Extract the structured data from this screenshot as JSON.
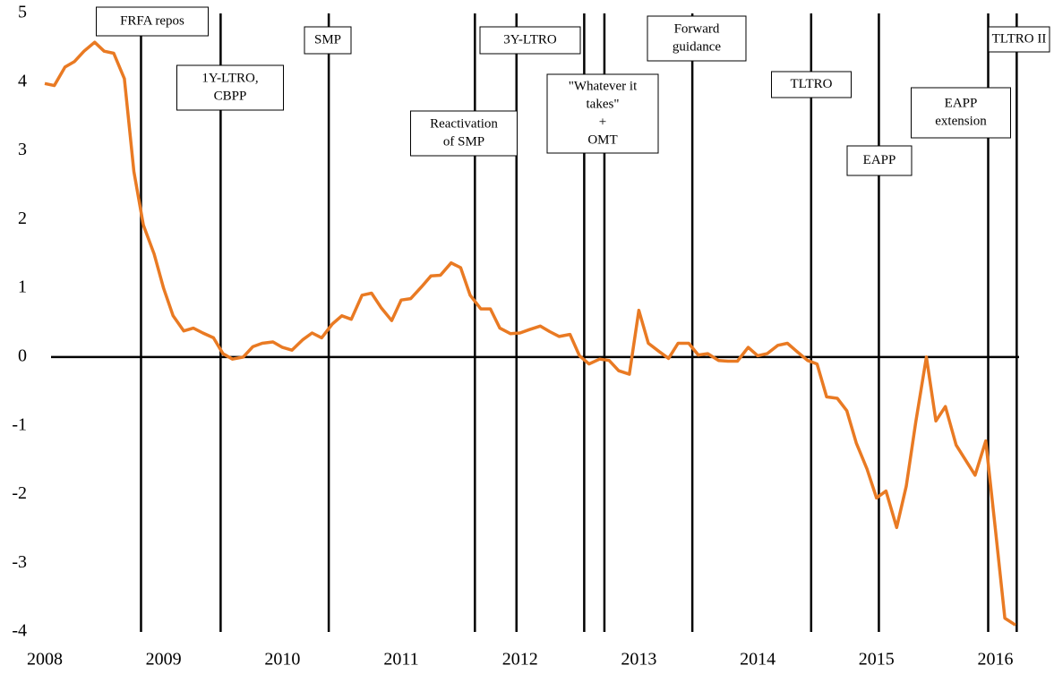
{
  "chart_data": {
    "type": "line",
    "color": "#e97a23",
    "x": [
      2008.0,
      2008.08,
      2008.17,
      2008.25,
      2008.33,
      2008.42,
      2008.5,
      2008.58,
      2008.67,
      2008.75,
      2008.83,
      2008.92,
      2009.0,
      2009.08,
      2009.17,
      2009.25,
      2009.33,
      2009.42,
      2009.5,
      2009.58,
      2009.67,
      2009.75,
      2009.83,
      2009.92,
      2010.0,
      2010.08,
      2010.17,
      2010.25,
      2010.33,
      2010.42,
      2010.5,
      2010.58,
      2010.67,
      2010.75,
      2010.83,
      2010.92,
      2011.0,
      2011.08,
      2011.17,
      2011.25,
      2011.33,
      2011.42,
      2011.5,
      2011.58,
      2011.67,
      2011.75,
      2011.83,
      2011.92,
      2012.0,
      2012.08,
      2012.17,
      2012.25,
      2012.33,
      2012.42,
      2012.5,
      2012.58,
      2012.67,
      2012.75,
      2012.83,
      2012.92,
      2013.0,
      2013.08,
      2013.17,
      2013.25,
      2013.33,
      2013.42,
      2013.5,
      2013.58,
      2013.67,
      2013.75,
      2013.83,
      2013.92,
      2014.0,
      2014.08,
      2014.17,
      2014.25,
      2014.33,
      2014.42,
      2014.5,
      2014.58,
      2014.67,
      2014.75,
      2014.83,
      2014.92,
      2015.0,
      2015.08,
      2015.17,
      2015.25,
      2015.33,
      2015.42,
      2015.5,
      2015.58,
      2015.67,
      2015.75,
      2015.83,
      2015.92,
      2016.0,
      2016.08,
      2016.17
    ],
    "values": [
      3.98,
      3.95,
      4.22,
      4.3,
      4.45,
      4.58,
      4.45,
      4.42,
      4.05,
      2.7,
      1.92,
      1.5,
      1.0,
      0.6,
      0.38,
      0.42,
      0.35,
      0.28,
      0.05,
      -0.03,
      0.0,
      0.15,
      0.2,
      0.22,
      0.14,
      0.1,
      0.25,
      0.35,
      0.28,
      0.48,
      0.6,
      0.55,
      0.9,
      0.93,
      0.72,
      0.53,
      0.83,
      0.85,
      1.02,
      1.18,
      1.19,
      1.37,
      1.3,
      0.9,
      0.7,
      0.7,
      0.42,
      0.34,
      0.35,
      0.4,
      0.45,
      0.37,
      0.3,
      0.33,
      0.02,
      -0.1,
      -0.03,
      -0.05,
      -0.2,
      -0.25,
      0.68,
      0.2,
      0.08,
      -0.02,
      0.2,
      0.2,
      0.03,
      0.05,
      -0.05,
      -0.06,
      -0.06,
      0.14,
      0.02,
      0.05,
      0.17,
      0.2,
      0.08,
      -0.05,
      -0.1,
      -0.58,
      -0.6,
      -0.78,
      -1.25,
      -1.63,
      -2.05,
      -1.95,
      -2.48,
      -1.88,
      -0.95,
      0.0,
      -0.93,
      -0.72,
      -1.28,
      -1.5,
      -1.72,
      -1.22,
      -2.5,
      -3.8,
      -3.9
    ],
    "xlim": [
      2008,
      2016.2
    ],
    "xticks": [
      2008,
      2009,
      2010,
      2011,
      2012,
      2013,
      2014,
      2015,
      2016
    ],
    "ylim": [
      -4,
      5
    ],
    "yticks": [
      -4,
      -3,
      -2,
      -1,
      0,
      1,
      2,
      3,
      4,
      5
    ],
    "annotations": [
      {
        "text": [
          "FRFA repos"
        ],
        "x": [
          2008.81
        ]
      },
      {
        "text": [
          "1Y-LTRO,",
          "CBPP"
        ],
        "x": [
          2009.48
        ]
      },
      {
        "text": [
          "SMP"
        ],
        "x": [
          2010.39
        ]
      },
      {
        "text": [
          "Reactivation",
          "of SMP"
        ],
        "x": [
          2011.62
        ]
      },
      {
        "text": [
          "3Y-LTRO"
        ],
        "x": [
          2011.97
        ]
      },
      {
        "text": [
          "\"Whatever it",
          "takes\"",
          "+",
          "OMT"
        ],
        "x": [
          2012.54,
          2012.71
        ]
      },
      {
        "text": [
          "Forward",
          "guidance"
        ],
        "x": [
          2013.45
        ]
      },
      {
        "text": [
          "TLTRO"
        ],
        "x": [
          2014.45
        ]
      },
      {
        "text": [
          "EAPP"
        ],
        "x": [
          2015.02
        ]
      },
      {
        "text": [
          "EAPP",
          "extension"
        ],
        "x": [
          2015.94
        ]
      },
      {
        "text": [
          "TLTRO II"
        ],
        "x": [
          2016.18
        ]
      }
    ]
  }
}
